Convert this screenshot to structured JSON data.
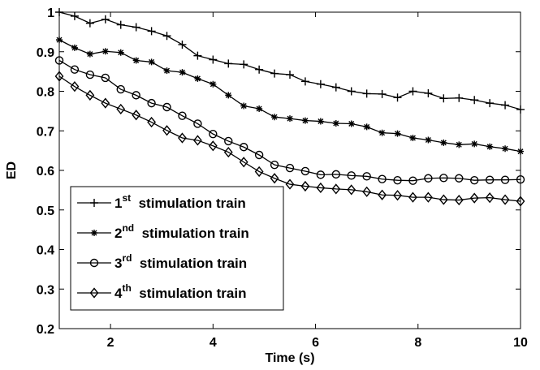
{
  "chart_data": {
    "type": "line",
    "title": "",
    "xlabel": "Time (s)",
    "ylabel": "ED",
    "xlim": [
      1,
      10
    ],
    "ylim": [
      0.2,
      1
    ],
    "xticks": [
      2,
      4,
      6,
      8,
      10
    ],
    "yticks": [
      0.2,
      0.3,
      0.4,
      0.5,
      0.6,
      0.7,
      0.8,
      0.9,
      1
    ],
    "grid": false,
    "legend_position": "bottom-left",
    "x": [
      1.0,
      1.3,
      1.6,
      1.9,
      2.2,
      2.5,
      2.8,
      3.1,
      3.4,
      3.7,
      4.0,
      4.3,
      4.6,
      4.9,
      5.2,
      5.5,
      5.8,
      6.1,
      6.4,
      6.7,
      7.0,
      7.3,
      7.6,
      7.9,
      8.2,
      8.5,
      8.8,
      9.1,
      9.4,
      9.7,
      10.0
    ],
    "series": [
      {
        "name": "1st stimulation train",
        "name_base": "1",
        "name_sup": "st",
        "name_rest": "stimulation train",
        "marker": "plus",
        "values": [
          1.0,
          0.99,
          0.972,
          0.982,
          0.968,
          0.962,
          0.952,
          0.94,
          0.918,
          0.89,
          0.88,
          0.87,
          0.868,
          0.855,
          0.845,
          0.842,
          0.825,
          0.818,
          0.81,
          0.8,
          0.794,
          0.793,
          0.784,
          0.8,
          0.795,
          0.782,
          0.783,
          0.778,
          0.77,
          0.765,
          0.754
        ]
      },
      {
        "name": "2nd stimulation train",
        "name_base": "2",
        "name_sup": "nd",
        "name_rest": "stimulation train",
        "marker": "asterisk",
        "values": [
          0.93,
          0.91,
          0.894,
          0.901,
          0.898,
          0.878,
          0.874,
          0.852,
          0.848,
          0.832,
          0.818,
          0.79,
          0.763,
          0.756,
          0.735,
          0.731,
          0.726,
          0.724,
          0.719,
          0.718,
          0.71,
          0.695,
          0.693,
          0.682,
          0.677,
          0.67,
          0.665,
          0.667,
          0.66,
          0.655,
          0.648
        ]
      },
      {
        "name": "3rd stimulation train",
        "name_base": "3",
        "name_sup": "rd",
        "name_rest": "stimulation train",
        "marker": "circle",
        "values": [
          0.878,
          0.855,
          0.842,
          0.834,
          0.805,
          0.79,
          0.77,
          0.76,
          0.738,
          0.718,
          0.692,
          0.674,
          0.659,
          0.639,
          0.614,
          0.606,
          0.598,
          0.589,
          0.59,
          0.587,
          0.585,
          0.578,
          0.575,
          0.574,
          0.58,
          0.581,
          0.58,
          0.575,
          0.576,
          0.576,
          0.577
        ]
      },
      {
        "name": "4th stimulation train",
        "name_base": "4",
        "name_sup": "th",
        "name_rest": "stimulation train",
        "marker": "diamond",
        "values": [
          0.838,
          0.812,
          0.79,
          0.77,
          0.755,
          0.74,
          0.722,
          0.701,
          0.682,
          0.676,
          0.662,
          0.646,
          0.621,
          0.597,
          0.58,
          0.565,
          0.56,
          0.556,
          0.553,
          0.551,
          0.546,
          0.538,
          0.537,
          0.532,
          0.532,
          0.526,
          0.525,
          0.53,
          0.531,
          0.526,
          0.522
        ]
      }
    ]
  }
}
